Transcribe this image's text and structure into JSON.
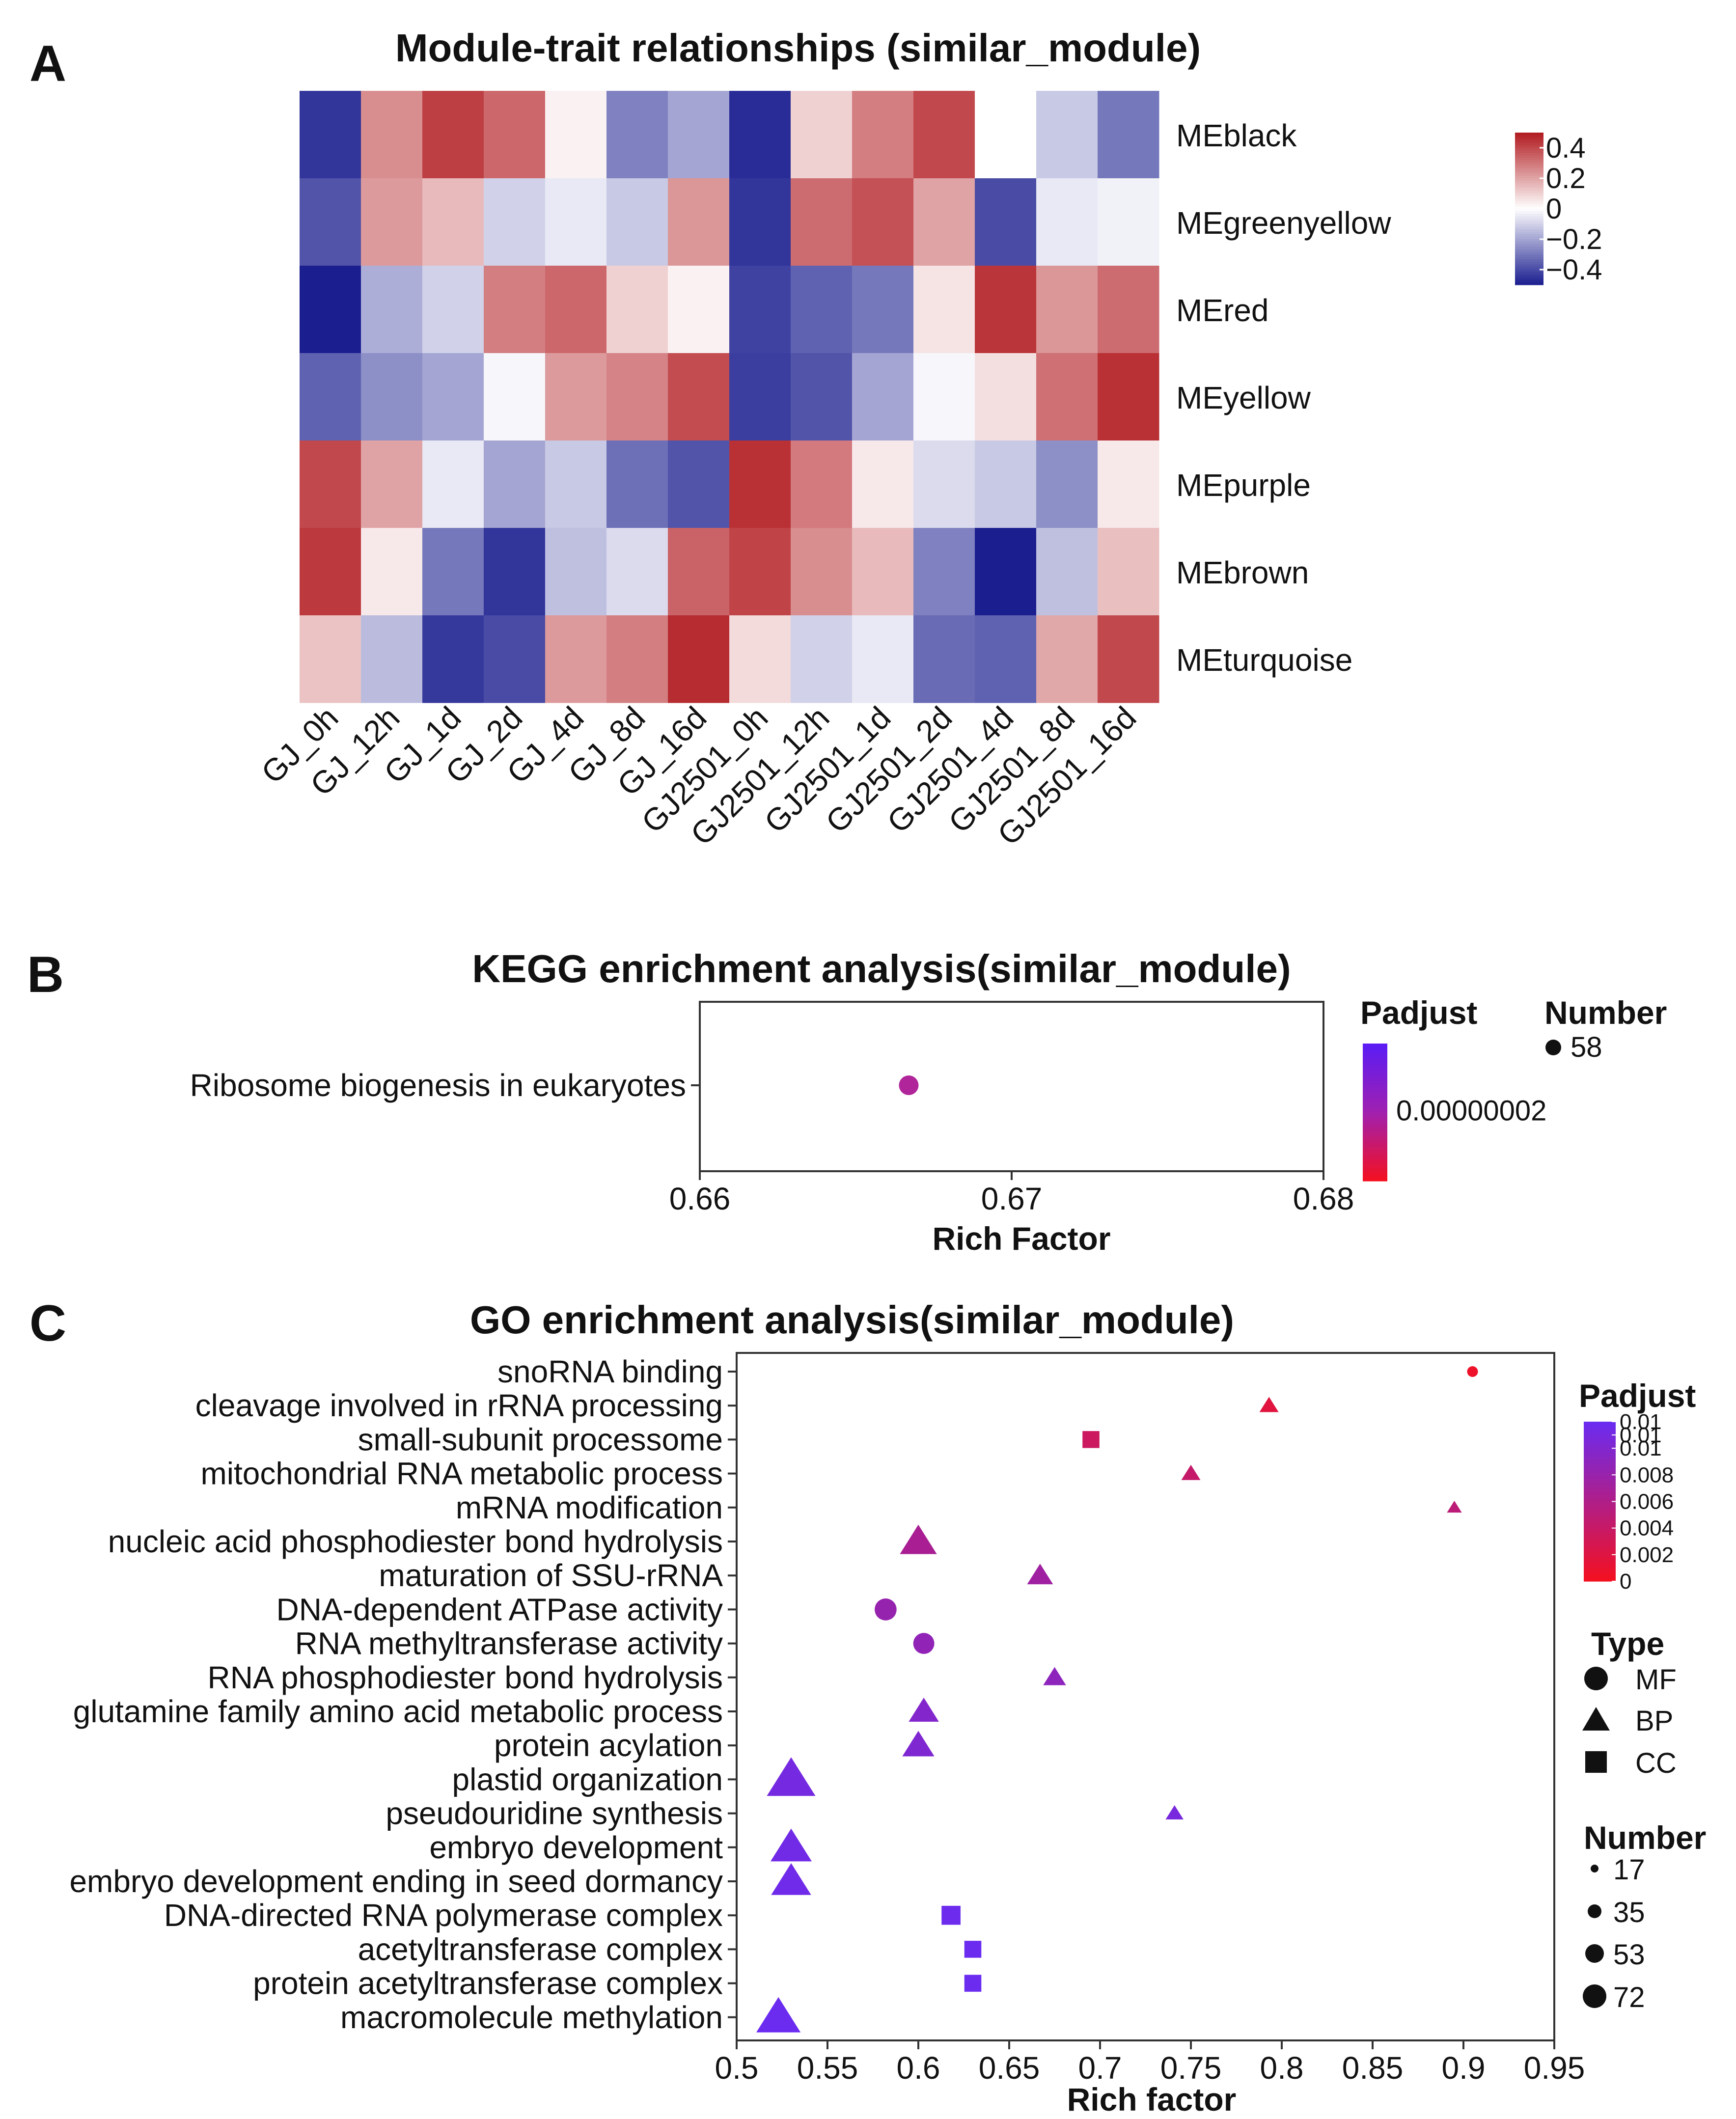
{
  "panels": {
    "a": "A",
    "b": "B",
    "c": "C"
  },
  "chart_data": [
    {
      "type": "heatmap",
      "title": "Module-trait relationships (similar_module)",
      "columns": [
        "GJ_0h",
        "GJ_12h",
        "GJ_1d",
        "GJ_2d",
        "GJ_4d",
        "GJ_8d",
        "GJ_16d",
        "GJ2501_0h",
        "GJ2501_12h",
        "GJ2501_1d",
        "GJ2501_2d",
        "GJ2501_4d",
        "GJ2501_8d",
        "GJ2501_16d"
      ],
      "rows": [
        "MEblack",
        "MEgreenyellow",
        "MEred",
        "MEyellow",
        "MEpurple",
        "MEbrown",
        "MEturquoise"
      ],
      "values": [
        [
          -0.45,
          0.25,
          0.42,
          0.33,
          0.03,
          -0.28,
          -0.2,
          -0.47,
          0.1,
          0.28,
          0.4,
          0.0,
          -0.12,
          -0.3
        ],
        [
          -0.38,
          0.22,
          0.15,
          -0.1,
          -0.05,
          -0.12,
          0.23,
          -0.45,
          0.32,
          0.38,
          0.2,
          -0.4,
          -0.05,
          -0.03
        ],
        [
          -0.5,
          -0.18,
          -0.1,
          0.28,
          0.33,
          0.1,
          0.03,
          -0.42,
          -0.35,
          -0.3,
          0.06,
          0.44,
          0.23,
          0.32
        ],
        [
          -0.35,
          -0.25,
          -0.2,
          -0.02,
          0.22,
          0.27,
          0.39,
          -0.43,
          -0.38,
          -0.2,
          -0.02,
          0.07,
          0.31,
          0.45
        ],
        [
          0.4,
          0.2,
          -0.05,
          -0.2,
          -0.12,
          -0.32,
          -0.38,
          0.45,
          0.29,
          0.05,
          -0.08,
          -0.12,
          -0.25,
          0.05
        ],
        [
          0.43,
          0.05,
          -0.3,
          -0.45,
          -0.14,
          -0.08,
          0.34,
          0.41,
          0.25,
          0.15,
          -0.28,
          -0.5,
          -0.14,
          0.14
        ],
        [
          0.13,
          -0.15,
          -0.44,
          -0.4,
          0.22,
          0.28,
          0.46,
          0.08,
          -0.1,
          -0.05,
          -0.33,
          -0.35,
          0.19,
          0.4
        ]
      ],
      "colorbar": {
        "ticks": [
          "0.4",
          "0.2",
          "0",
          "−0.2",
          "−0.4"
        ],
        "tick_values": [
          0.4,
          0.2,
          0,
          -0.2,
          -0.4
        ],
        "range": [
          -0.5,
          0.5
        ],
        "low": "#1b1e8f",
        "mid": "#ffffff",
        "high": "#b11a1f"
      }
    },
    {
      "type": "scatter",
      "title": "KEGG enrichment analysis(similar_module)",
      "xlabel": "Rich Factor",
      "xlim": [
        0.66,
        0.68
      ],
      "xticks": [
        "0.66",
        "0.67",
        "0.68"
      ],
      "xtick_values": [
        0.66,
        0.67,
        0.68
      ],
      "points": [
        {
          "term": "Ribosome biogenesis in eukaryotes",
          "x": 0.6667,
          "number": 58,
          "padjust": 2e-08
        }
      ],
      "legend_padjust": {
        "title": "Padjust",
        "ticks": [
          "0.00000002"
        ]
      },
      "legend_number": {
        "title": "Number",
        "ticks": [
          "58"
        ]
      }
    },
    {
      "type": "scatter",
      "title": "GO enrichment analysis(similar_module)",
      "xlabel": "Rich factor",
      "xlim": [
        0.5,
        0.95
      ],
      "xticks": [
        "0.5",
        "0.55",
        "0.6",
        "0.65",
        "0.7",
        "0.75",
        "0.8",
        "0.85",
        "0.9",
        "0.95"
      ],
      "xtick_values": [
        0.5,
        0.55,
        0.6,
        0.65,
        0.7,
        0.75,
        0.8,
        0.85,
        0.9,
        0.95
      ],
      "points": [
        {
          "term": "snoRNA binding",
          "x": 0.905,
          "type": "MF",
          "number": 17,
          "padjust": 0.0005
        },
        {
          "term": "cleavage involved in rRNA processing",
          "x": 0.793,
          "type": "BP",
          "number": 24,
          "padjust": 0.0015
        },
        {
          "term": "small-subunit processome",
          "x": 0.695,
          "type": "CC",
          "number": 35,
          "padjust": 0.003
        },
        {
          "term": "mitochondrial RNA metabolic process",
          "x": 0.75,
          "type": "BP",
          "number": 24,
          "padjust": 0.0035
        },
        {
          "term": "mRNA modification",
          "x": 0.895,
          "type": "BP",
          "number": 17,
          "padjust": 0.0042
        },
        {
          "term": "nucleic acid phosphodiester bond hydrolysis",
          "x": 0.6,
          "type": "BP",
          "number": 53,
          "padjust": 0.0055
        },
        {
          "term": "maturation of SSU-rRNA",
          "x": 0.667,
          "type": "BP",
          "number": 35,
          "padjust": 0.0062
        },
        {
          "term": "DNA-dependent ATPase activity",
          "x": 0.582,
          "type": "MF",
          "number": 42,
          "padjust": 0.0068
        },
        {
          "term": "RNA methyltransferase activity",
          "x": 0.603,
          "type": "MF",
          "number": 40,
          "padjust": 0.0072
        },
        {
          "term": "RNA phosphodiester bond hydrolysis",
          "x": 0.675,
          "type": "BP",
          "number": 30,
          "padjust": 0.0075
        },
        {
          "term": "glutamine family amino acid metabolic process",
          "x": 0.603,
          "type": "BP",
          "number": 42,
          "padjust": 0.0082
        },
        {
          "term": "protein acylation",
          "x": 0.6,
          "type": "BP",
          "number": 45,
          "padjust": 0.0085
        },
        {
          "term": "plastid organization",
          "x": 0.53,
          "type": "BP",
          "number": 72,
          "padjust": 0.0092
        },
        {
          "term": "pseudouridine synthesis",
          "x": 0.741,
          "type": "BP",
          "number": 22,
          "padjust": 0.009
        },
        {
          "term": "embryo development",
          "x": 0.53,
          "type": "BP",
          "number": 60,
          "padjust": 0.0095
        },
        {
          "term": "embryo development ending in seed dormancy",
          "x": 0.53,
          "type": "BP",
          "number": 58,
          "padjust": 0.0096
        },
        {
          "term": "DNA-directed RNA polymerase complex",
          "x": 0.618,
          "type": "CC",
          "number": 40,
          "padjust": 0.0098
        },
        {
          "term": "acetyltransferase complex",
          "x": 0.63,
          "type": "CC",
          "number": 35,
          "padjust": 0.0099
        },
        {
          "term": "protein acetyltransferase complex",
          "x": 0.63,
          "type": "CC",
          "number": 35,
          "padjust": 0.0099
        },
        {
          "term": "macromolecule methylation",
          "x": 0.523,
          "type": "BP",
          "number": 65,
          "padjust": 0.0099
        }
      ],
      "legend_padjust": {
        "title": "Padjust",
        "ticks": [
          "0.01",
          "0.01",
          "0.01",
          "0.008",
          "0.006",
          "0.004",
          "0.002",
          "0"
        ],
        "tick_values": [
          0.012,
          0.011,
          0.01,
          0.008,
          0.006,
          0.004,
          0.002,
          0
        ]
      },
      "legend_type": {
        "title": "Type",
        "items": [
          "MF",
          "BP",
          "CC"
        ]
      },
      "legend_number": {
        "title": "Number",
        "ticks": [
          "17",
          "35",
          "53",
          "72"
        ]
      },
      "padjust_colors": {
        "low": "#f5101f",
        "high": "#6a2cf2"
      }
    }
  ]
}
